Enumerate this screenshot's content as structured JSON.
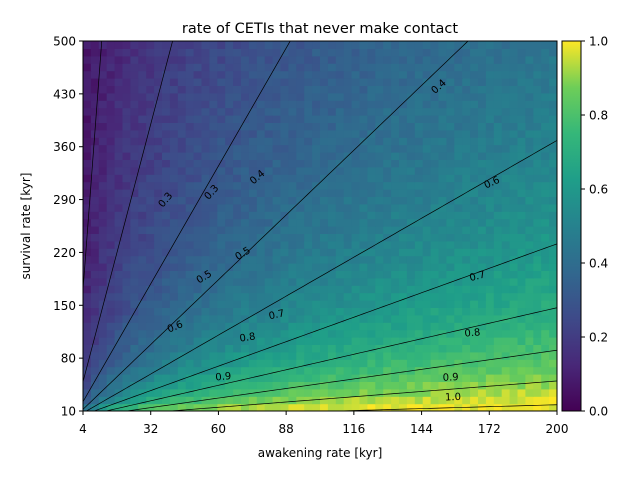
{
  "chart_data": {
    "type": "heatmap",
    "title": "rate of CETIs that never make contact",
    "xlabel": "awakening rate [kyr]",
    "ylabel": "survival rate [kyr]",
    "xlim": [
      4,
      200
    ],
    "ylim": [
      10,
      500
    ],
    "x_ticks": [
      "4",
      "32",
      "60",
      "88",
      "116",
      "144",
      "172",
      "200"
    ],
    "y_ticks": [
      "10",
      "80",
      "150",
      "220",
      "290",
      "360",
      "430",
      "500"
    ],
    "colormap": "viridis",
    "colorbar": {
      "min": 0.0,
      "max": 1.0,
      "ticks": [
        "0.0",
        "0.2",
        "0.4",
        "0.6",
        "0.8",
        "1.0"
      ]
    },
    "value_model": "fraction ≈ 1 - exp(-(awakening/survival)^0.6), with sampling noise",
    "contour_levels": [
      0.1,
      0.2,
      0.3,
      0.4,
      0.5,
      0.6,
      0.7,
      0.8,
      0.9,
      1.0
    ],
    "contour_labels": [
      {
        "text": "0.3",
        "x": 38,
        "y": 290,
        "rotate": -50
      },
      {
        "text": "0.3",
        "x": 57,
        "y": 300,
        "rotate": -48
      },
      {
        "text": "0.4",
        "x": 76,
        "y": 320,
        "rotate": -40
      },
      {
        "text": "0.4",
        "x": 151,
        "y": 440,
        "rotate": -42
      },
      {
        "text": "0.5",
        "x": 54,
        "y": 188,
        "rotate": -32
      },
      {
        "text": "0.5",
        "x": 70,
        "y": 219,
        "rotate": -32
      },
      {
        "text": "0.6",
        "x": 42,
        "y": 122,
        "rotate": -22
      },
      {
        "text": "0.6",
        "x": 173,
        "y": 313,
        "rotate": -24
      },
      {
        "text": "0.7",
        "x": 84,
        "y": 138,
        "rotate": -12
      },
      {
        "text": "0.7",
        "x": 167,
        "y": 189,
        "rotate": -14
      },
      {
        "text": "0.8",
        "x": 72,
        "y": 108,
        "rotate": -8
      },
      {
        "text": "0.8",
        "x": 165,
        "y": 114,
        "rotate": -5
      },
      {
        "text": "0.9",
        "x": 62,
        "y": 56,
        "rotate": -5
      },
      {
        "text": "0.9",
        "x": 156,
        "y": 55,
        "rotate": -3
      },
      {
        "text": "1.0",
        "x": 157,
        "y": 29,
        "rotate": -2
      }
    ]
  }
}
